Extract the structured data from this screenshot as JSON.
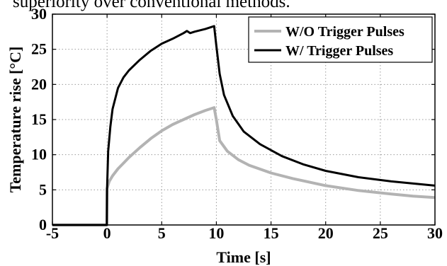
{
  "header_fragment": "superiority over conventional methods.",
  "chart_data": {
    "type": "line",
    "xlabel": "Time [s]",
    "ylabel": "Temperature rise [°C]",
    "xlim": [
      -5,
      30
    ],
    "ylim": [
      0,
      30
    ],
    "xticks": [
      -5,
      0,
      5,
      10,
      15,
      20,
      25,
      30
    ],
    "yticks": [
      0,
      5,
      10,
      15,
      20,
      25,
      30
    ],
    "grid": true,
    "legend_position": "top-right",
    "series": [
      {
        "name": "W/O Trigger Pulses",
        "color": "#b3b3b3",
        "x": [
          -5,
          -0.02,
          0,
          0.2,
          0.5,
          1,
          1.5,
          2,
          3,
          4,
          5,
          6,
          7,
          8,
          9,
          9.8,
          10,
          10.3,
          11,
          12,
          13,
          15,
          17,
          20,
          23,
          26,
          28,
          30
        ],
        "y": [
          0,
          0,
          5.2,
          6.2,
          7.0,
          8.0,
          8.8,
          9.6,
          11.0,
          12.3,
          13.4,
          14.3,
          15.0,
          15.7,
          16.3,
          16.7,
          15.0,
          12.0,
          10.5,
          9.3,
          8.5,
          7.4,
          6.6,
          5.6,
          4.9,
          4.4,
          4.1,
          3.9
        ]
      },
      {
        "name": "W/ Trigger Pulses",
        "color": "#000000",
        "x": [
          -5,
          -0.02,
          0,
          0.1,
          0.3,
          0.5,
          1,
          1.5,
          2,
          3,
          4,
          5,
          6,
          7,
          7.3,
          7.6,
          8,
          9,
          9.8,
          10,
          10.3,
          10.7,
          11.5,
          12.5,
          14,
          16,
          18,
          20,
          23,
          26,
          28,
          30
        ],
        "y": [
          0,
          0,
          5.0,
          10.5,
          14.0,
          16.5,
          19.5,
          21.0,
          22.0,
          23.5,
          24.8,
          25.8,
          26.5,
          27.3,
          27.6,
          27.3,
          27.5,
          27.9,
          28.3,
          25.5,
          21.5,
          18.5,
          15.5,
          13.3,
          11.5,
          9.8,
          8.6,
          7.7,
          6.8,
          6.2,
          5.9,
          5.6
        ]
      }
    ]
  }
}
